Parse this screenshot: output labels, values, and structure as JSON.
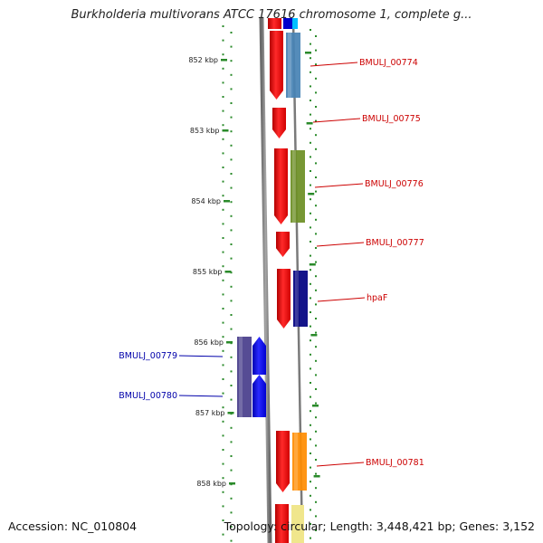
{
  "title": "Burkholderia multivorans ATCC 17616 chromosome 1, complete g...",
  "footer": {
    "accession_label": "Accession: NC_010804",
    "summary": "Topology: circular; Length: 3,448,421 bp; Genes: 3,152"
  },
  "colors": {
    "backbone": "#808080",
    "tick": "#2a8a2a",
    "label_red": "#cc0000",
    "label_blue": "#0000aa"
  },
  "kbp_labels": [
    "852 kbp",
    "853 kbp",
    "854 kbp",
    "855 kbp",
    "856 kbp",
    "857 kbp",
    "858 kbp"
  ],
  "genes": [
    {
      "label": "BMULJ_00774",
      "strand": "forward",
      "cds_color": "#ff0000",
      "feature_color": "#4682b4"
    },
    {
      "label": "BMULJ_00775",
      "strand": "forward",
      "cds_color": "#ff0000",
      "feature_color": ""
    },
    {
      "label": "BMULJ_00776",
      "strand": "forward",
      "cds_color": "#ff0000",
      "feature_color": "#6b8e23"
    },
    {
      "label": "BMULJ_00777",
      "strand": "forward",
      "cds_color": "#ff0000",
      "feature_color": ""
    },
    {
      "label": "hpaF",
      "strand": "forward",
      "cds_color": "#ff0000",
      "feature_color": "#000080"
    },
    {
      "label": "BMULJ_00779",
      "strand": "reverse",
      "cds_color": "#0000ff",
      "feature_color": "#483d8b"
    },
    {
      "label": "BMULJ_00780",
      "strand": "reverse",
      "cds_color": "#0000ff",
      "feature_color": "#483d8b"
    },
    {
      "label": "BMULJ_00781",
      "strand": "forward",
      "cds_color": "#ff0000",
      "feature_color": "#ff8c00"
    }
  ]
}
